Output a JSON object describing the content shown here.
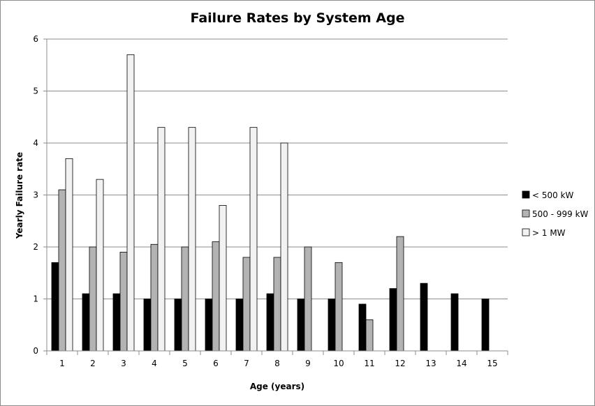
{
  "chart_data": {
    "type": "bar",
    "title": "Failure Rates by System Age",
    "xlabel": "Age (years)",
    "ylabel": "Yearly Failure rate",
    "categories": [
      "1",
      "2",
      "3",
      "4",
      "5",
      "6",
      "7",
      "8",
      "9",
      "10",
      "11",
      "12",
      "13",
      "14",
      "15"
    ],
    "ylim": [
      0,
      6
    ],
    "yticks": [
      "0",
      "1",
      "2",
      "3",
      "4",
      "5",
      "6"
    ],
    "grid": true,
    "legend_position": "right",
    "series": [
      {
        "name": "< 500 kW",
        "color": "#000000",
        "values": [
          1.7,
          1.1,
          1.1,
          1.0,
          1.0,
          1.0,
          1.0,
          1.1,
          1.0,
          1.0,
          0.9,
          1.2,
          1.3,
          1.1,
          1.0
        ]
      },
      {
        "name": "500 - 999 kW",
        "color": "#b3b3b3",
        "values": [
          3.1,
          2.0,
          1.9,
          2.05,
          2.0,
          2.1,
          1.8,
          1.8,
          2.0,
          1.7,
          0.6,
          2.2,
          null,
          null,
          null
        ]
      },
      {
        "name": "> 1 MW",
        "color": "#f2f2f2",
        "values": [
          3.7,
          3.3,
          5.7,
          4.3,
          4.3,
          2.8,
          4.3,
          4.0,
          null,
          null,
          null,
          null,
          null,
          null,
          null
        ]
      }
    ]
  }
}
